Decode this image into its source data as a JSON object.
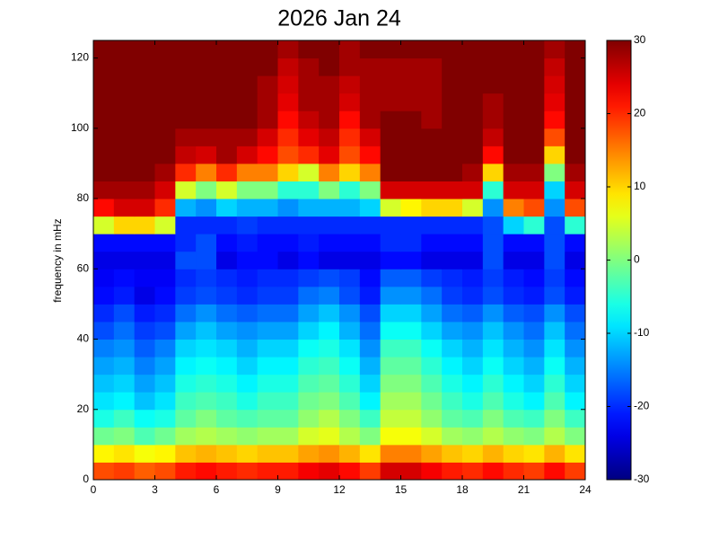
{
  "chart_data": {
    "type": "heatmap",
    "title": "2026 Jan 24",
    "y_label": "frequency in mHz",
    "colormap": "jet",
    "xbins": [
      0,
      1,
      2,
      3,
      4,
      5,
      6,
      7,
      8,
      9,
      10,
      11,
      12,
      13,
      14,
      15,
      16,
      17,
      18,
      19,
      20,
      21,
      22,
      23,
      24
    ],
    "ybins": [
      0,
      5,
      10,
      15,
      20,
      25,
      30,
      35,
      40,
      45,
      50,
      55,
      60,
      65,
      70,
      75,
      80,
      85,
      90,
      95,
      100,
      105,
      110,
      115,
      120,
      125
    ],
    "values": [
      [
        18,
        19,
        17,
        18,
        21,
        22,
        21,
        20,
        21,
        21,
        23,
        24,
        22,
        19,
        25,
        25,
        23,
        21,
        20,
        22,
        20,
        19,
        22,
        19
      ],
      [
        8,
        9,
        7,
        8,
        11,
        12,
        11,
        10,
        11,
        11,
        13,
        14,
        12,
        9,
        15,
        15,
        13,
        11,
        10,
        12,
        10,
        9,
        12,
        9
      ],
      [
        -1,
        0,
        -3,
        -1,
        2,
        3,
        2,
        1,
        2,
        2,
        5,
        6,
        3,
        0,
        7,
        7,
        5,
        2,
        1,
        3,
        1,
        0,
        3,
        0
      ],
      [
        -6,
        -4,
        -7,
        -6,
        -2,
        0,
        -2,
        -3,
        -2,
        -2,
        1,
        3,
        0,
        -4,
        4,
        4,
        1,
        -2,
        -3,
        0,
        -3,
        -4,
        0,
        -4
      ],
      [
        -9,
        -8,
        -11,
        -9,
        -4,
        -3,
        -4,
        -6,
        -4,
        -4,
        -1,
        0,
        -3,
        -8,
        2,
        2,
        -1,
        -4,
        -6,
        -3,
        -6,
        -8,
        -3,
        -8
      ],
      [
        -11,
        -10,
        -13,
        -11,
        -6,
        -5,
        -6,
        -8,
        -6,
        -6,
        -3,
        -2,
        -5,
        -10,
        0,
        0,
        -3,
        -6,
        -8,
        -5,
        -8,
        -10,
        -5,
        -10
      ],
      [
        -13,
        -12,
        -15,
        -13,
        -8,
        -7,
        -8,
        -10,
        -8,
        -8,
        -5,
        -4,
        -7,
        -12,
        -2,
        -2,
        -5,
        -8,
        -10,
        -7,
        -10,
        -12,
        -7,
        -12
      ],
      [
        -15,
        -14,
        -17,
        -15,
        -10,
        -9,
        -10,
        -12,
        -10,
        -10,
        -7,
        -6,
        -9,
        -14,
        -4,
        -4,
        -7,
        -10,
        -12,
        -9,
        -12,
        -14,
        -9,
        -14
      ],
      [
        -18,
        -16,
        -19,
        -18,
        -13,
        -11,
        -13,
        -14,
        -13,
        -13,
        -10,
        -8,
        -12,
        -16,
        -7,
        -7,
        -10,
        -13,
        -14,
        -11,
        -14,
        -16,
        -11,
        -16
      ],
      [
        -20,
        -18,
        -21,
        -20,
        -16,
        -14,
        -16,
        -17,
        -16,
        -16,
        -13,
        -11,
        -14,
        -18,
        -10,
        -10,
        -13,
        -16,
        -17,
        -14,
        -17,
        -18,
        -14,
        -18
      ],
      [
        -22,
        -21,
        -24,
        -22,
        -19,
        -18,
        -19,
        -20,
        -19,
        -19,
        -16,
        -15,
        -18,
        -21,
        -14,
        -14,
        -16,
        -19,
        -20,
        -18,
        -20,
        -21,
        -18,
        -21
      ],
      [
        -23,
        -22,
        -23,
        -23,
        -20,
        -19,
        -20,
        -21,
        -20,
        -20,
        -19,
        -18,
        -19,
        -22,
        -17,
        -17,
        -19,
        -20,
        -21,
        -19,
        -21,
        -22,
        -19,
        -22
      ],
      [
        -24,
        -24,
        -24,
        -24,
        -18,
        -18,
        -24,
        -22,
        -22,
        -24,
        -22,
        -24,
        -24,
        -24,
        -22,
        -22,
        -24,
        -24,
        -24,
        -18,
        -24,
        -24,
        -18,
        -24
      ],
      [
        -22,
        -22,
        -22,
        -22,
        -20,
        -18,
        -22,
        -21,
        -22,
        -22,
        -21,
        -22,
        -22,
        -22,
        -20,
        -20,
        -22,
        -22,
        -22,
        -18,
        -22,
        -22,
        -18,
        -22
      ],
      [
        5,
        10,
        10,
        5,
        -20,
        -20,
        -20,
        -19,
        -20,
        -20,
        -20,
        -20,
        -20,
        -20,
        -20,
        -20,
        -20,
        -20,
        -20,
        -18,
        -10,
        -5,
        -18,
        -5
      ],
      [
        22,
        25,
        25,
        20,
        -12,
        -14,
        -10,
        -12,
        -12,
        -14,
        -12,
        -12,
        -12,
        -10,
        5,
        8,
        10,
        10,
        5,
        -14,
        15,
        18,
        -14,
        18
      ],
      [
        28,
        28,
        28,
        25,
        5,
        0,
        5,
        0,
        0,
        -5,
        -5,
        0,
        -5,
        0,
        25,
        25,
        25,
        25,
        25,
        -5,
        25,
        25,
        -10,
        25
      ],
      [
        30,
        30,
        30,
        28,
        20,
        15,
        20,
        15,
        15,
        10,
        5,
        15,
        10,
        15,
        30,
        30,
        30,
        30,
        28,
        10,
        28,
        28,
        0,
        28
      ],
      [
        30,
        30,
        30,
        30,
        26,
        25,
        28,
        25,
        22,
        18,
        20,
        24,
        18,
        22,
        30,
        30,
        30,
        30,
        30,
        22,
        30,
        30,
        10,
        30
      ],
      [
        30,
        30,
        30,
        30,
        28,
        28,
        28,
        28,
        25,
        20,
        24,
        26,
        20,
        25,
        30,
        30,
        30,
        30,
        30,
        26,
        30,
        30,
        18,
        30
      ],
      [
        30,
        30,
        30,
        30,
        30,
        30,
        30,
        30,
        28,
        22,
        26,
        28,
        22,
        28,
        30,
        30,
        28,
        30,
        30,
        28,
        30,
        30,
        22,
        30
      ],
      [
        30,
        30,
        30,
        30,
        30,
        30,
        30,
        30,
        28,
        24,
        28,
        28,
        25,
        28,
        28,
        28,
        28,
        30,
        30,
        28,
        30,
        30,
        24,
        30
      ],
      [
        30,
        30,
        30,
        30,
        30,
        30,
        30,
        30,
        28,
        25,
        28,
        28,
        26,
        28,
        28,
        28,
        28,
        30,
        30,
        30,
        30,
        30,
        25,
        30
      ],
      [
        30,
        30,
        30,
        30,
        30,
        30,
        30,
        30,
        30,
        26,
        28,
        30,
        28,
        28,
        28,
        28,
        28,
        30,
        30,
        30,
        30,
        30,
        26,
        30
      ],
      [
        30,
        30,
        30,
        30,
        30,
        30,
        30,
        30,
        30,
        28,
        30,
        30,
        28,
        30,
        30,
        30,
        30,
        30,
        30,
        30,
        30,
        30,
        28,
        30
      ]
    ],
    "xlim": [
      0,
      24
    ],
    "xticks": [
      0,
      3,
      6,
      9,
      12,
      15,
      18,
      21,
      24
    ],
    "ylim": [
      0,
      125
    ],
    "yticks": [
      0,
      20,
      40,
      60,
      80,
      100,
      120
    ],
    "clim": [
      -30,
      30
    ],
    "cticks": [
      -30,
      -20,
      -10,
      0,
      10,
      20,
      30
    ]
  }
}
